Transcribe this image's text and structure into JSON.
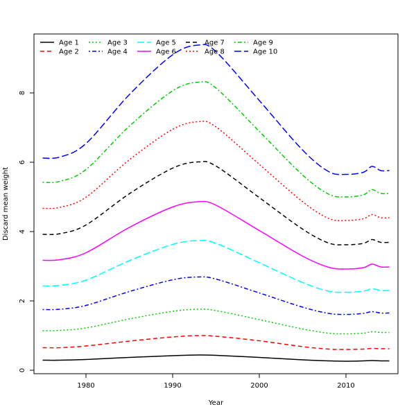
{
  "chart_data": {
    "type": "line",
    "title": "",
    "xlabel": "Year",
    "ylabel": "Discard mean weight",
    "xlim": [
      1974,
      2016
    ],
    "ylim": [
      -0.1,
      9.7
    ],
    "xticks": [
      1980,
      1990,
      2000,
      2010
    ],
    "yticks": [
      0,
      2,
      4,
      6,
      8
    ],
    "grid": false,
    "legend_position": "top-left",
    "x": [
      1975,
      1977,
      1980,
      1985,
      1990,
      1993,
      1995,
      2000,
      2005,
      2008,
      2010,
      2012,
      2013,
      2014,
      2015
    ],
    "series": [
      {
        "name": "Age 1",
        "color": "#000000",
        "dash": "solid",
        "values": [
          0.29,
          0.29,
          0.31,
          0.37,
          0.42,
          0.44,
          0.43,
          0.37,
          0.3,
          0.27,
          0.26,
          0.27,
          0.28,
          0.27,
          0.27
        ]
      },
      {
        "name": "Age 2",
        "color": "#ff0000",
        "dash": "dashed",
        "values": [
          0.65,
          0.65,
          0.7,
          0.84,
          0.96,
          1.0,
          0.98,
          0.85,
          0.68,
          0.61,
          0.6,
          0.61,
          0.63,
          0.62,
          0.62
        ]
      },
      {
        "name": "Age 3",
        "color": "#00cd00",
        "dash": "dotted",
        "values": [
          1.14,
          1.15,
          1.22,
          1.48,
          1.7,
          1.76,
          1.72,
          1.46,
          1.19,
          1.07,
          1.05,
          1.07,
          1.11,
          1.09,
          1.09
        ]
      },
      {
        "name": "Age 4",
        "color": "#0000ff",
        "dash": "dotdash",
        "values": [
          1.75,
          1.76,
          1.87,
          2.27,
          2.61,
          2.69,
          2.63,
          2.23,
          1.82,
          1.64,
          1.61,
          1.64,
          1.69,
          1.65,
          1.65
        ]
      },
      {
        "name": "Age 5",
        "color": "#00ffff",
        "dash": "longdash",
        "values": [
          2.43,
          2.45,
          2.6,
          3.16,
          3.63,
          3.74,
          3.66,
          3.1,
          2.53,
          2.28,
          2.25,
          2.28,
          2.35,
          2.3,
          2.3
        ]
      },
      {
        "name": "Age 6",
        "color": "#ff00ff",
        "dash": "solid",
        "values": [
          3.17,
          3.19,
          3.39,
          4.12,
          4.71,
          4.86,
          4.76,
          4.03,
          3.29,
          2.97,
          2.92,
          2.96,
          3.06,
          2.98,
          2.98
        ]
      },
      {
        "name": "Age 7",
        "color": "#000000",
        "dash": "dashed",
        "values": [
          3.92,
          3.94,
          4.19,
          5.09,
          5.83,
          6.01,
          5.89,
          4.98,
          4.07,
          3.67,
          3.62,
          3.66,
          3.77,
          3.69,
          3.69
        ]
      },
      {
        "name": "Age 8",
        "color": "#ff0000",
        "dash": "dotted",
        "values": [
          4.67,
          4.7,
          4.99,
          6.07,
          6.95,
          7.17,
          7.02,
          5.94,
          4.86,
          4.38,
          4.32,
          4.37,
          4.49,
          4.4,
          4.4
        ]
      },
      {
        "name": "Age 9",
        "color": "#00cd00",
        "dash": "dotdash",
        "values": [
          5.42,
          5.45,
          5.79,
          7.04,
          8.06,
          8.31,
          8.14,
          6.89,
          5.63,
          5.08,
          5.0,
          5.06,
          5.21,
          5.1,
          5.1
        ]
      },
      {
        "name": "Age 10",
        "color": "#0000ff",
        "dash": "longdash",
        "values": [
          6.12,
          6.15,
          6.54,
          7.95,
          9.1,
          9.38,
          9.19,
          7.78,
          6.35,
          5.73,
          5.65,
          5.71,
          5.88,
          5.76,
          5.76
        ]
      }
    ]
  }
}
